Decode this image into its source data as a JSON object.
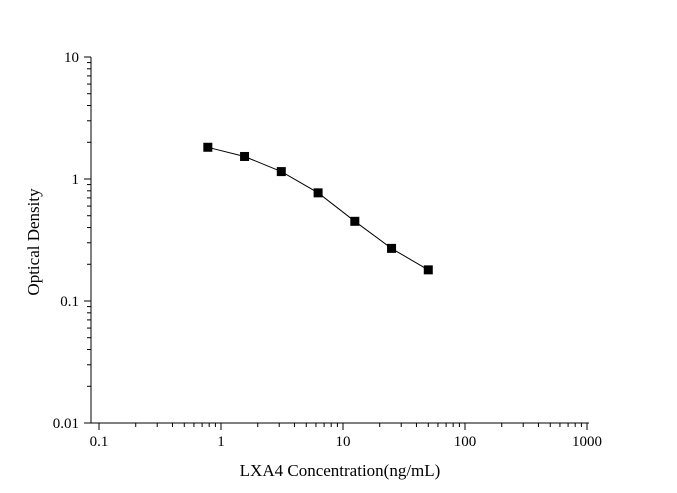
{
  "chart_data": {
    "type": "line",
    "title": "",
    "xlabel": "LXA4 Concentration(ng/mL)",
    "ylabel": "Optical Density",
    "xscale": "log",
    "yscale": "log",
    "xlim": [
      0.1,
      1000
    ],
    "ylim": [
      0.01,
      10
    ],
    "x_ticks": [
      0.1,
      1,
      10,
      100,
      1000
    ],
    "x_tick_labels": [
      "0.1",
      "1",
      "10",
      "100",
      "1000"
    ],
    "y_ticks": [
      0.01,
      0.1,
      1,
      10
    ],
    "y_tick_labels": [
      "0.01",
      "0.1",
      "1",
      "10"
    ],
    "grid": false,
    "legend": "none",
    "marker": "square",
    "series": [
      {
        "x": [
          0.78,
          1.56,
          3.12,
          6.25,
          12.5,
          25,
          50
        ],
        "y": [
          1.82,
          1.53,
          1.15,
          0.77,
          0.45,
          0.27,
          0.18
        ],
        "color": "#000000"
      }
    ]
  }
}
